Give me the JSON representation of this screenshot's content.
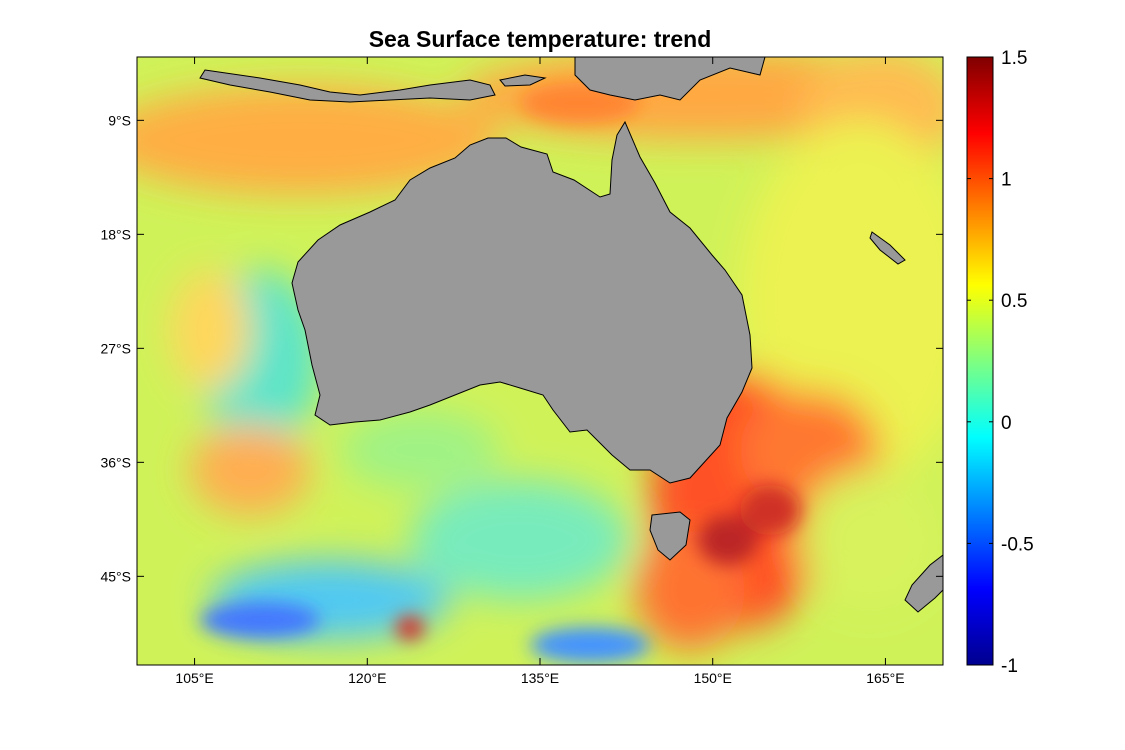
{
  "title": "Sea Surface temperature: trend",
  "map": {
    "lon_range": [
      100,
      170
    ],
    "lat_range": [
      -52,
      -4
    ],
    "land_color": "#999999",
    "coastline_color": "#000000",
    "x_ticks": [
      {
        "value": 105,
        "label": "105°E"
      },
      {
        "value": 120,
        "label": "120°E"
      },
      {
        "value": 135,
        "label": "135°E"
      },
      {
        "value": 150,
        "label": "150°E"
      },
      {
        "value": 165,
        "label": "165°E"
      }
    ],
    "y_ticks": [
      {
        "value": -9,
        "label": "9°S"
      },
      {
        "value": -18,
        "label": "18°S"
      },
      {
        "value": -27,
        "label": "27°S"
      },
      {
        "value": -36,
        "label": "36°S"
      },
      {
        "value": -45,
        "label": "45°S"
      }
    ]
  },
  "colorbar": {
    "colormap": "jet",
    "range": [
      -1,
      1.5
    ],
    "ticks": [
      {
        "value": 1.5,
        "label": "1.5"
      },
      {
        "value": 1,
        "label": "1"
      },
      {
        "value": 0.5,
        "label": "0.5"
      },
      {
        "value": 0,
        "label": "0"
      },
      {
        "value": -0.5,
        "label": "-0.5"
      },
      {
        "value": -1,
        "label": "-1"
      }
    ]
  }
}
